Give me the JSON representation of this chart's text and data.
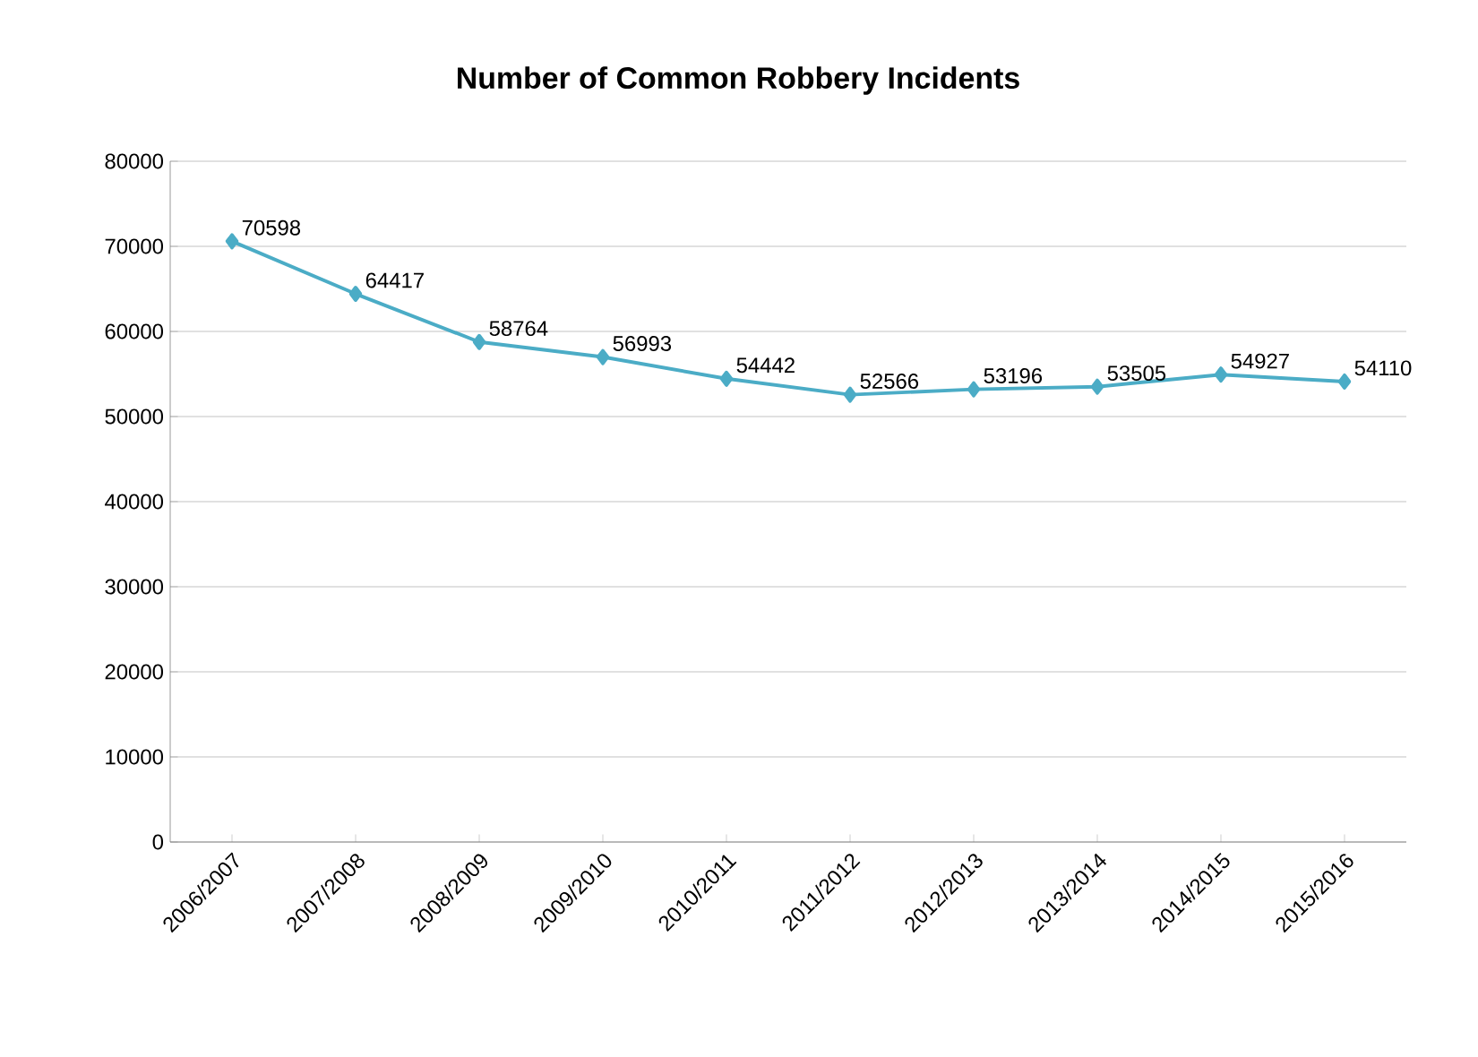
{
  "chart_data": {
    "type": "line",
    "title": "Number of Common Robbery Incidents",
    "categories": [
      "2006/2007",
      "2007/2008",
      "2008/2009",
      "2009/2010",
      "2010/2011",
      "2011/2012",
      "2012/2013",
      "2013/2014",
      "2014/2015",
      "2015/2016"
    ],
    "series": [
      {
        "color": "#4bacc6",
        "values": [
          70598,
          64417,
          58764,
          56993,
          54442,
          52566,
          53196,
          53505,
          54927,
          54110
        ]
      }
    ],
    "ylim": [
      0,
      80000
    ],
    "yticks": [
      0,
      10000,
      20000,
      30000,
      40000,
      50000,
      60000,
      70000,
      80000
    ],
    "grid": "y",
    "marker": "diamond",
    "line_style": "solid",
    "data_labels": true
  }
}
